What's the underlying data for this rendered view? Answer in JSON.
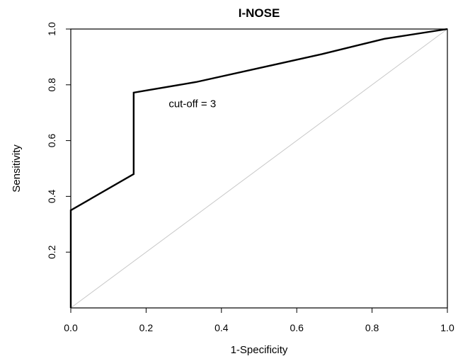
{
  "chart_data": {
    "type": "line",
    "title": "I-NOSE",
    "xlabel": "1-Specificity",
    "ylabel": "Sensitivity",
    "xlim": [
      0,
      1
    ],
    "ylim": [
      0,
      1
    ],
    "x_ticks": [
      "0.0",
      "0.2",
      "0.4",
      "0.6",
      "0.8",
      "1.0"
    ],
    "y_ticks": [
      "0.2",
      "0.4",
      "0.6",
      "0.8",
      "1.0"
    ],
    "grid": false,
    "series": [
      {
        "x": [
          0.0,
          0.0,
          0.167,
          0.167,
          0.333,
          0.5,
          0.667,
          0.833,
          1.0
        ],
        "y": [
          0.0,
          0.35,
          0.48,
          0.772,
          0.81,
          0.86,
          0.91,
          0.965,
          1.0
        ],
        "color": "#000000"
      }
    ],
    "reference_line": {
      "x": [
        0,
        1
      ],
      "y": [
        0,
        1
      ],
      "color": "#c8c8c8"
    },
    "annotations": [
      {
        "text": "cut-off = 3",
        "x": 0.26,
        "y": 0.72
      }
    ]
  }
}
